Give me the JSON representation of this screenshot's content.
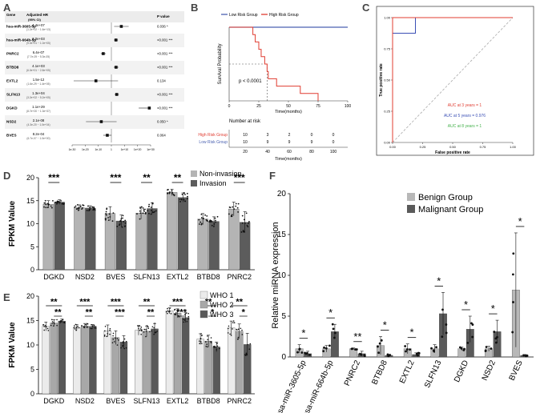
{
  "panel_labels": {
    "a": "A",
    "b": "B",
    "c": "C",
    "d": "D",
    "e": "E",
    "f": "F"
  },
  "chart_data": [
    {
      "id": "A",
      "type": "forest",
      "col_gene": "Gene",
      "col_hr": "Adjusted HR",
      "col_hr_sub": "(95% CI)",
      "col_p": "P value",
      "rows": [
        {
          "gene": "hsa-miR-3605-5p",
          "hr": "4.4e+07",
          "ci": "(1.2e+02 ~ 1.6e+13)",
          "p": "0.036 *",
          "est": 7.6,
          "lo": 2.1,
          "hi": 13.2
        },
        {
          "gene": "hsa-miR-664b-5p",
          "hr": "3.0e+03",
          "ci": "(9.0e+01 ~ 1.0e+05)",
          "p": "<0.001 ***",
          "est": 3.5,
          "lo": 2.0,
          "hi": 5.0
        },
        {
          "gene": "PNRC2",
          "hr": "6.4e-07",
          "ci": "(7.7e-09 ~ 5.3e-05)",
          "p": "<0.001 ***",
          "est": -6.2,
          "lo": -8.1,
          "hi": -4.3
        },
        {
          "gene": "BTBD8",
          "hr": "4.1e+03",
          "ci": "(6.0e+01 ~ 2.8e+05)",
          "p": "<0.001 ***",
          "est": 3.6,
          "lo": 1.8,
          "hi": 5.4
        },
        {
          "gene": "EXTL2",
          "hr": "1.5e-12",
          "ci": "(1.6e-29 ~ 1.4e+05)",
          "p": "0.134",
          "est": -11.8,
          "lo": -28.8,
          "hi": 5.1
        },
        {
          "gene": "SLFN13",
          "hr": "1.3e+04",
          "ci": "(3.2e+02 ~ 5.2e+05)",
          "p": "<0.001 ***",
          "est": 4.1,
          "lo": 2.5,
          "hi": 5.7
        },
        {
          "gene": "DGKD",
          "hr": "1.1e+29",
          "ci": "(8.7e+20 ~ 1.3e+37)",
          "p": "<0.001 ***",
          "est": 29.0,
          "lo": 20.9,
          "hi": 37.1
        },
        {
          "gene": "NSD2",
          "hr": "2.1e-08",
          "ci": "(4.3e-20 ~ 1.0e+04)",
          "p": "0.050 *",
          "est": -7.7,
          "lo": -19.4,
          "hi": 4.0
        },
        {
          "gene": "BVES",
          "hr": "8.2e-04",
          "ci": "(6.7e-07 ~ 1.0e+00)",
          "p": "0.064",
          "est": -3.1,
          "lo": -6.2,
          "hi": 0.0
        }
      ],
      "ticks": [
        "1e-30",
        "1e-20",
        "1e-10",
        "1",
        "1e+10",
        "1e+20",
        "1e+30"
      ],
      "tick_exp": [
        -30,
        -20,
        -10,
        0,
        10,
        20,
        30
      ]
    },
    {
      "id": "B",
      "type": "line",
      "legend": [
        "Low Risk Group",
        "High Risk Group"
      ],
      "colors": {
        "low": "#4a60b0",
        "high": "#e03c31"
      },
      "ylabel": "Survival Probability",
      "xlabel": "Time(months)",
      "xticks": [
        0,
        25,
        50,
        75,
        100
      ],
      "yticks": [
        0.0,
        0.25,
        0.5,
        0.75,
        1.0
      ],
      "xlim": [
        0,
        100
      ],
      "ylim": [
        0,
        1
      ],
      "pvalue": "p < 0.0001",
      "low_curve": [
        [
          0,
          1.0
        ],
        [
          100,
          1.0
        ]
      ],
      "high_curve": [
        [
          0,
          1.0
        ],
        [
          20,
          1.0
        ],
        [
          20,
          0.9
        ],
        [
          22,
          0.9
        ],
        [
          22,
          0.8
        ],
        [
          25,
          0.8
        ],
        [
          25,
          0.7
        ],
        [
          27,
          0.7
        ],
        [
          27,
          0.6
        ],
        [
          30,
          0.6
        ],
        [
          30,
          0.5
        ],
        [
          32,
          0.5
        ],
        [
          32,
          0.4
        ],
        [
          33,
          0.4
        ],
        [
          33,
          0.3
        ],
        [
          40,
          0.3
        ],
        [
          40,
          0.2
        ],
        [
          60,
          0.2
        ],
        [
          60,
          0.1
        ],
        [
          75,
          0.1
        ],
        [
          75,
          0.0
        ]
      ],
      "median_y": 0.5,
      "median_x": 32,
      "risk_title": "Number at risk",
      "risk_rows": [
        {
          "label": "High Risk Group",
          "values": [
            "10",
            "3",
            "2",
            "0",
            "0"
          ]
        },
        {
          "label": "Low Risk Group",
          "values": [
            "10",
            "9",
            "9",
            "9",
            "0"
          ]
        }
      ],
      "risk_xticks": [
        "20",
        "40",
        "60",
        "80",
        "100"
      ],
      "risk_xlabel": "Time(months)"
    },
    {
      "id": "C",
      "type": "line",
      "ylabel": "True positive rate",
      "xlabel": "False positive rate",
      "xticks": [
        0.0,
        0.25,
        0.5,
        0.75,
        1.0
      ],
      "yticks": [
        0.0,
        0.25,
        0.5,
        0.75,
        1.0
      ],
      "xlim": [
        0,
        1
      ],
      "ylim": [
        0,
        1
      ],
      "series": [
        {
          "name": "AUC at 3 years = 1",
          "color": "#e03c31",
          "points": [
            [
              0,
              0
            ],
            [
              0,
              1
            ],
            [
              1,
              1
            ]
          ]
        },
        {
          "name": "AUC at 5 years = 0.976",
          "color": "#3a4fb5",
          "points": [
            [
              0,
              0
            ],
            [
              0,
              0.875
            ],
            [
              0.19,
              0.875
            ],
            [
              0.19,
              1
            ],
            [
              1,
              1
            ]
          ]
        },
        {
          "name": "AUC at 8 years = 1",
          "color": "#43b04a",
          "points": [
            [
              0,
              0
            ],
            [
              0,
              1
            ],
            [
              1,
              1
            ]
          ]
        }
      ]
    },
    {
      "id": "D",
      "type": "bar",
      "ylabel": "FPKM Value",
      "categories": [
        "DGKD",
        "NSD2",
        "BVES",
        "SLFN13",
        "EXTL2",
        "BTBD8",
        "PNRC2"
      ],
      "ylim": [
        0,
        20
      ],
      "yticks": [
        0,
        5,
        10,
        15,
        20
      ],
      "series": [
        {
          "name": "Non-invasion",
          "color": "#b4b4b4",
          "values": [
            14.2,
            13.5,
            12.2,
            12.3,
            16.8,
            11.0,
            13.2
          ],
          "err": [
            0.8,
            0.6,
            1.5,
            1.3,
            0.7,
            1.2,
            1.5
          ]
        },
        {
          "name": "Invasion",
          "color": "#5c5c5c",
          "values": [
            14.7,
            13.4,
            10.6,
            13.3,
            15.7,
            10.5,
            10.3
          ],
          "err": [
            0.5,
            0.5,
            1.3,
            1.2,
            1.0,
            1.0,
            2.3
          ]
        }
      ],
      "sig": [
        "***",
        "",
        "***",
        "**",
        "**",
        "",
        "***"
      ]
    },
    {
      "id": "E",
      "type": "bar",
      "ylabel": "FPKM Value",
      "categories": [
        "DGKD",
        "NSD2",
        "BVES",
        "SLFN13",
        "EXTL2",
        "BTBD8",
        "PNRC2"
      ],
      "ylim": [
        0,
        20
      ],
      "yticks": [
        0,
        5,
        10,
        15,
        20
      ],
      "series": [
        {
          "name": "WHO 1",
          "color": "#ebebeb",
          "values": [
            13.8,
            13.6,
            12.9,
            13.0,
            17.0,
            11.2,
            13.5
          ],
          "err": [
            0.9,
            0.6,
            1.2,
            1.0,
            0.6,
            1.1,
            1.4
          ]
        },
        {
          "name": "WHO 2",
          "color": "#a8a8a8",
          "values": [
            14.5,
            13.9,
            11.5,
            12.8,
            16.5,
            10.8,
            12.8
          ],
          "err": [
            0.7,
            0.5,
            1.4,
            1.1,
            0.9,
            1.2,
            1.5
          ]
        },
        {
          "name": "WHO 3",
          "color": "#595959",
          "values": [
            14.9,
            13.8,
            10.6,
            13.3,
            15.6,
            9.6,
            10.1
          ],
          "err": [
            0.4,
            0.4,
            1.3,
            1.1,
            1.0,
            1.0,
            2.3
          ]
        }
      ],
      "sig_rows": [
        [
          "**",
          "***",
          "***",
          "**",
          "***",
          "**",
          "**"
        ],
        [
          "**",
          "**",
          "***",
          "**",
          "***",
          "*",
          "*"
        ]
      ]
    },
    {
      "id": "F",
      "type": "bar",
      "ylabel": "Relative miRNA expression",
      "categories": [
        "hsa-miR-3605-5p",
        "hsa-miR-664b-5p",
        "PNRC2",
        "BTBD8",
        "EXTL2",
        "SLFN13",
        "DGKD",
        "NSD2",
        "BVES"
      ],
      "ylim": [
        0,
        20
      ],
      "yticks": [
        0,
        5,
        10,
        15,
        20
      ],
      "series": [
        {
          "name": "Benign Group",
          "color": "#b8b8b8",
          "values": [
            1.0,
            1.0,
            1.0,
            1.4,
            1.0,
            1.0,
            1.0,
            1.0,
            8.2
          ],
          "err": [
            0.5,
            0.4,
            0.1,
            1.1,
            0.6,
            0.5,
            0.2,
            0.3,
            7.0
          ]
        },
        {
          "name": "Malignant Group",
          "color": "#5a5a5a",
          "values": [
            0.4,
            3.1,
            0.4,
            0.2,
            0.3,
            5.3,
            3.4,
            3.1,
            0.2
          ],
          "err": [
            0.3,
            0.9,
            0.3,
            0.1,
            0.2,
            2.6,
            1.6,
            1.4,
            0.1
          ]
        }
      ],
      "sig": [
        "*",
        "*",
        "**",
        "*",
        "*",
        "*",
        "*",
        "*",
        "*"
      ]
    }
  ]
}
